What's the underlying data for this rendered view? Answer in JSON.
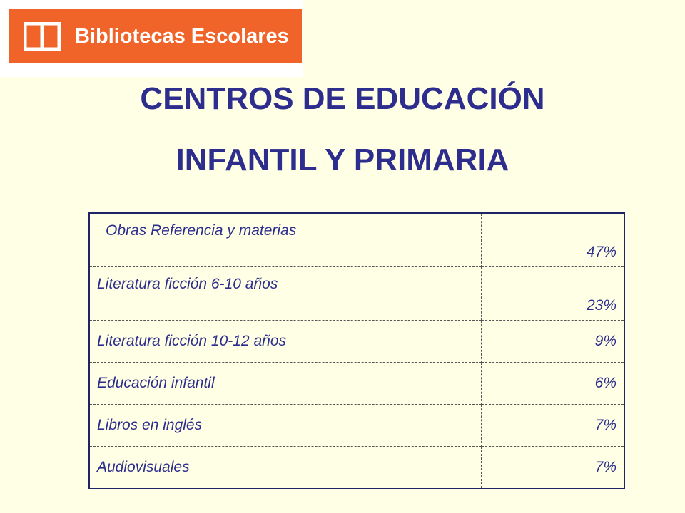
{
  "logo": {
    "text": "Bibliotecas Escolares",
    "icon": "open-book-icon",
    "brand_color": "#F0642A"
  },
  "title": {
    "line1": "CENTROS DE EDUCACIÓN",
    "line2": "INFANTIL Y PRIMARIA",
    "color": "#2D2D8E"
  },
  "table": {
    "rows": [
      {
        "category": "Obras Referencia y materias",
        "value": "47%"
      },
      {
        "category": "Literatura  ficción 6-10 años",
        "value": "23%"
      },
      {
        "category": "Literatura  ficción 10-12 años",
        "value": "9%"
      },
      {
        "category": "Educación infantil",
        "value": "6%"
      },
      {
        "category": "Libros en inglés",
        "value": "7%"
      },
      {
        "category": "Audiovisuales",
        "value": "7%"
      }
    ]
  }
}
